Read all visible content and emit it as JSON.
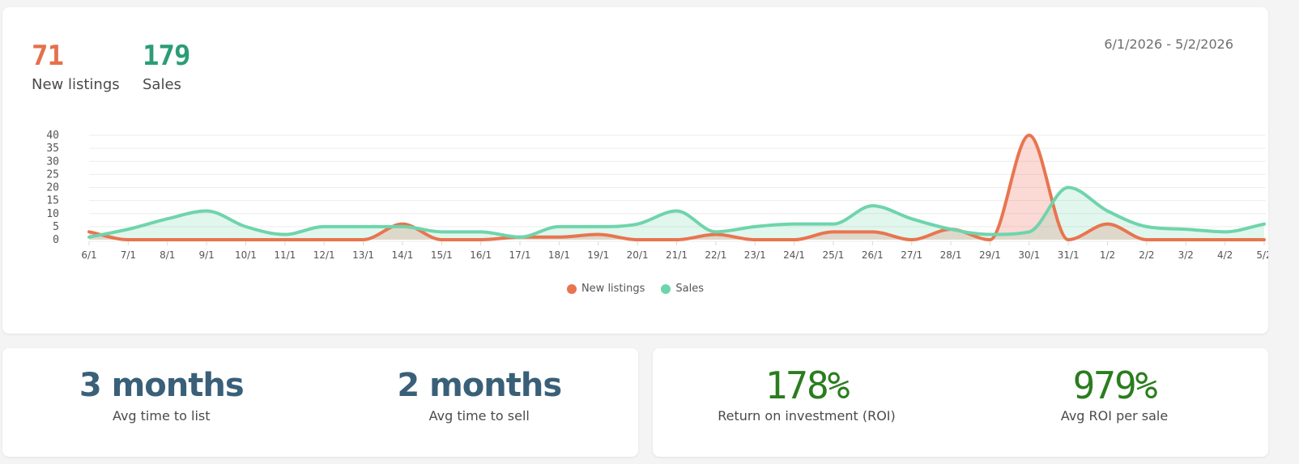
{
  "header": {
    "new_listings": {
      "value": "71",
      "label": "New listings",
      "color": "#e4714c"
    },
    "sales": {
      "value": "179",
      "label": "Sales",
      "color": "#2a9d75"
    },
    "date_range": "6/1/2026 - 5/2/2026"
  },
  "legend": [
    {
      "label": "New listings",
      "color": "#e8754f"
    },
    {
      "label": "Sales",
      "color": "#6fd4ac"
    }
  ],
  "stats_time": {
    "avg_time_to_list": {
      "value": "3 months",
      "label": "Avg time to list"
    },
    "avg_time_to_sell": {
      "value": "2 months",
      "label": "Avg time to sell"
    }
  },
  "stats_roi": {
    "roi": {
      "value": "178%",
      "label": "Return on investment (ROI)"
    },
    "avg_roi_per_sale": {
      "value": "979%",
      "label": "Avg ROI per sale"
    }
  },
  "chart_data": {
    "type": "area",
    "title": "",
    "xlabel": "",
    "ylabel": "",
    "ylim": [
      0,
      40
    ],
    "yticks": [
      0,
      5,
      10,
      15,
      20,
      25,
      30,
      35,
      40
    ],
    "grid": true,
    "legend_position": "bottom",
    "categories": [
      "6/1",
      "7/1",
      "8/1",
      "9/1",
      "10/1",
      "11/1",
      "12/1",
      "13/1",
      "14/1",
      "15/1",
      "16/1",
      "17/1",
      "18/1",
      "19/1",
      "20/1",
      "21/1",
      "22/1",
      "23/1",
      "24/1",
      "25/1",
      "26/1",
      "27/1",
      "28/1",
      "29/1",
      "30/1",
      "31/1",
      "1/2",
      "2/2",
      "3/2",
      "4/2",
      "5/2"
    ],
    "series": [
      {
        "name": "New listings",
        "color": "#e8754f",
        "fill": "rgba(240,120,100,0.28)",
        "values": [
          3,
          0,
          0,
          0,
          0,
          0,
          0,
          0,
          6,
          0,
          0,
          1,
          1,
          2,
          0,
          0,
          2,
          0,
          0,
          3,
          3,
          0,
          4,
          0,
          40,
          0,
          6,
          0,
          0,
          0,
          0
        ]
      },
      {
        "name": "Sales",
        "color": "#6fd4ac",
        "fill": "rgba(120,215,175,0.22)",
        "values": [
          1,
          4,
          8,
          11,
          5,
          2,
          5,
          5,
          5,
          3,
          3,
          1,
          5,
          5,
          6,
          11,
          3,
          5,
          6,
          6,
          13,
          8,
          4,
          2,
          3,
          20,
          11,
          5,
          4,
          3,
          6
        ]
      }
    ]
  }
}
